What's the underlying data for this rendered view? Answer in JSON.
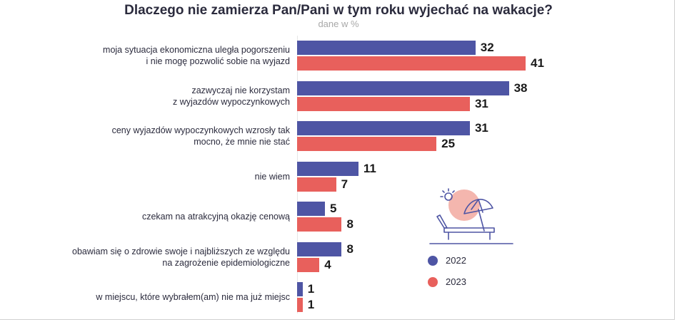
{
  "chart_data": {
    "type": "bar",
    "orientation": "horizontal",
    "title": "Dlaczego nie zamierza Pan/Pani w tym roku wyjechać na wakacje?",
    "subtitle": "dane w %",
    "categories": [
      [
        "moja sytuacja ekonomiczna uległa pogorszeniu",
        "i nie mogę pozwolić sobie na wyjazd"
      ],
      [
        "zazwyczaj nie korzystam",
        "z wyjazdów wypoczynkowych"
      ],
      [
        "ceny wyjazdów wypoczynkowych wzrosły tak",
        "mocno, że mnie nie stać"
      ],
      [
        "nie wiem"
      ],
      [
        "czekam na atrakcyjną okazję cenową"
      ],
      [
        "obawiam się o zdrowie swoje i najbliższych ze względu",
        "na zagrożenie epidemiologiczne"
      ],
      [
        "w miejscu, które wybrałem(am) nie ma już miejsc"
      ]
    ],
    "series": [
      {
        "name": "2022",
        "color": "#4e55a4",
        "values": [
          32,
          38,
          31,
          11,
          5,
          8,
          1
        ]
      },
      {
        "name": "2023",
        "color": "#e8605c",
        "values": [
          41,
          31,
          25,
          7,
          8,
          4,
          1
        ]
      }
    ],
    "xlim": [
      0,
      41
    ],
    "grid": false,
    "legend_position": "bottom-right"
  },
  "illustration": {
    "icon": "beach-chair-umbrella-icon",
    "sun_color": "#f4b6ae",
    "line_color": "#4e55a4"
  }
}
